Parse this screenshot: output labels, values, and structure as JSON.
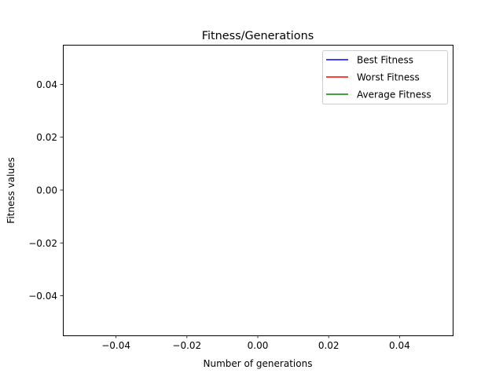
{
  "chart_data": {
    "type": "line",
    "title": "Fitness/Generations",
    "xlabel": "Number of generations",
    "ylabel": "Fitness values",
    "xlim": [
      -0.055,
      0.055
    ],
    "ylim": [
      -0.055,
      0.055
    ],
    "xticks": [
      -0.04,
      -0.02,
      0.0,
      0.02,
      0.04
    ],
    "xtick_labels": [
      "−0.04",
      "−0.02",
      "0.00",
      "0.02",
      "0.04"
    ],
    "yticks": [
      -0.04,
      -0.02,
      0.0,
      0.02,
      0.04
    ],
    "ytick_labels": [
      "−0.04",
      "−0.02",
      "0.00",
      "0.02",
      "0.04"
    ],
    "grid": false,
    "legend_position": "top-right",
    "series": [
      {
        "name": "Best Fitness",
        "color": "#0000ff",
        "x": [],
        "y": []
      },
      {
        "name": "Worst Fitness",
        "color": "#ff0000",
        "x": [],
        "y": []
      },
      {
        "name": "Average Fitness",
        "color": "#008000",
        "x": [],
        "y": []
      }
    ]
  }
}
